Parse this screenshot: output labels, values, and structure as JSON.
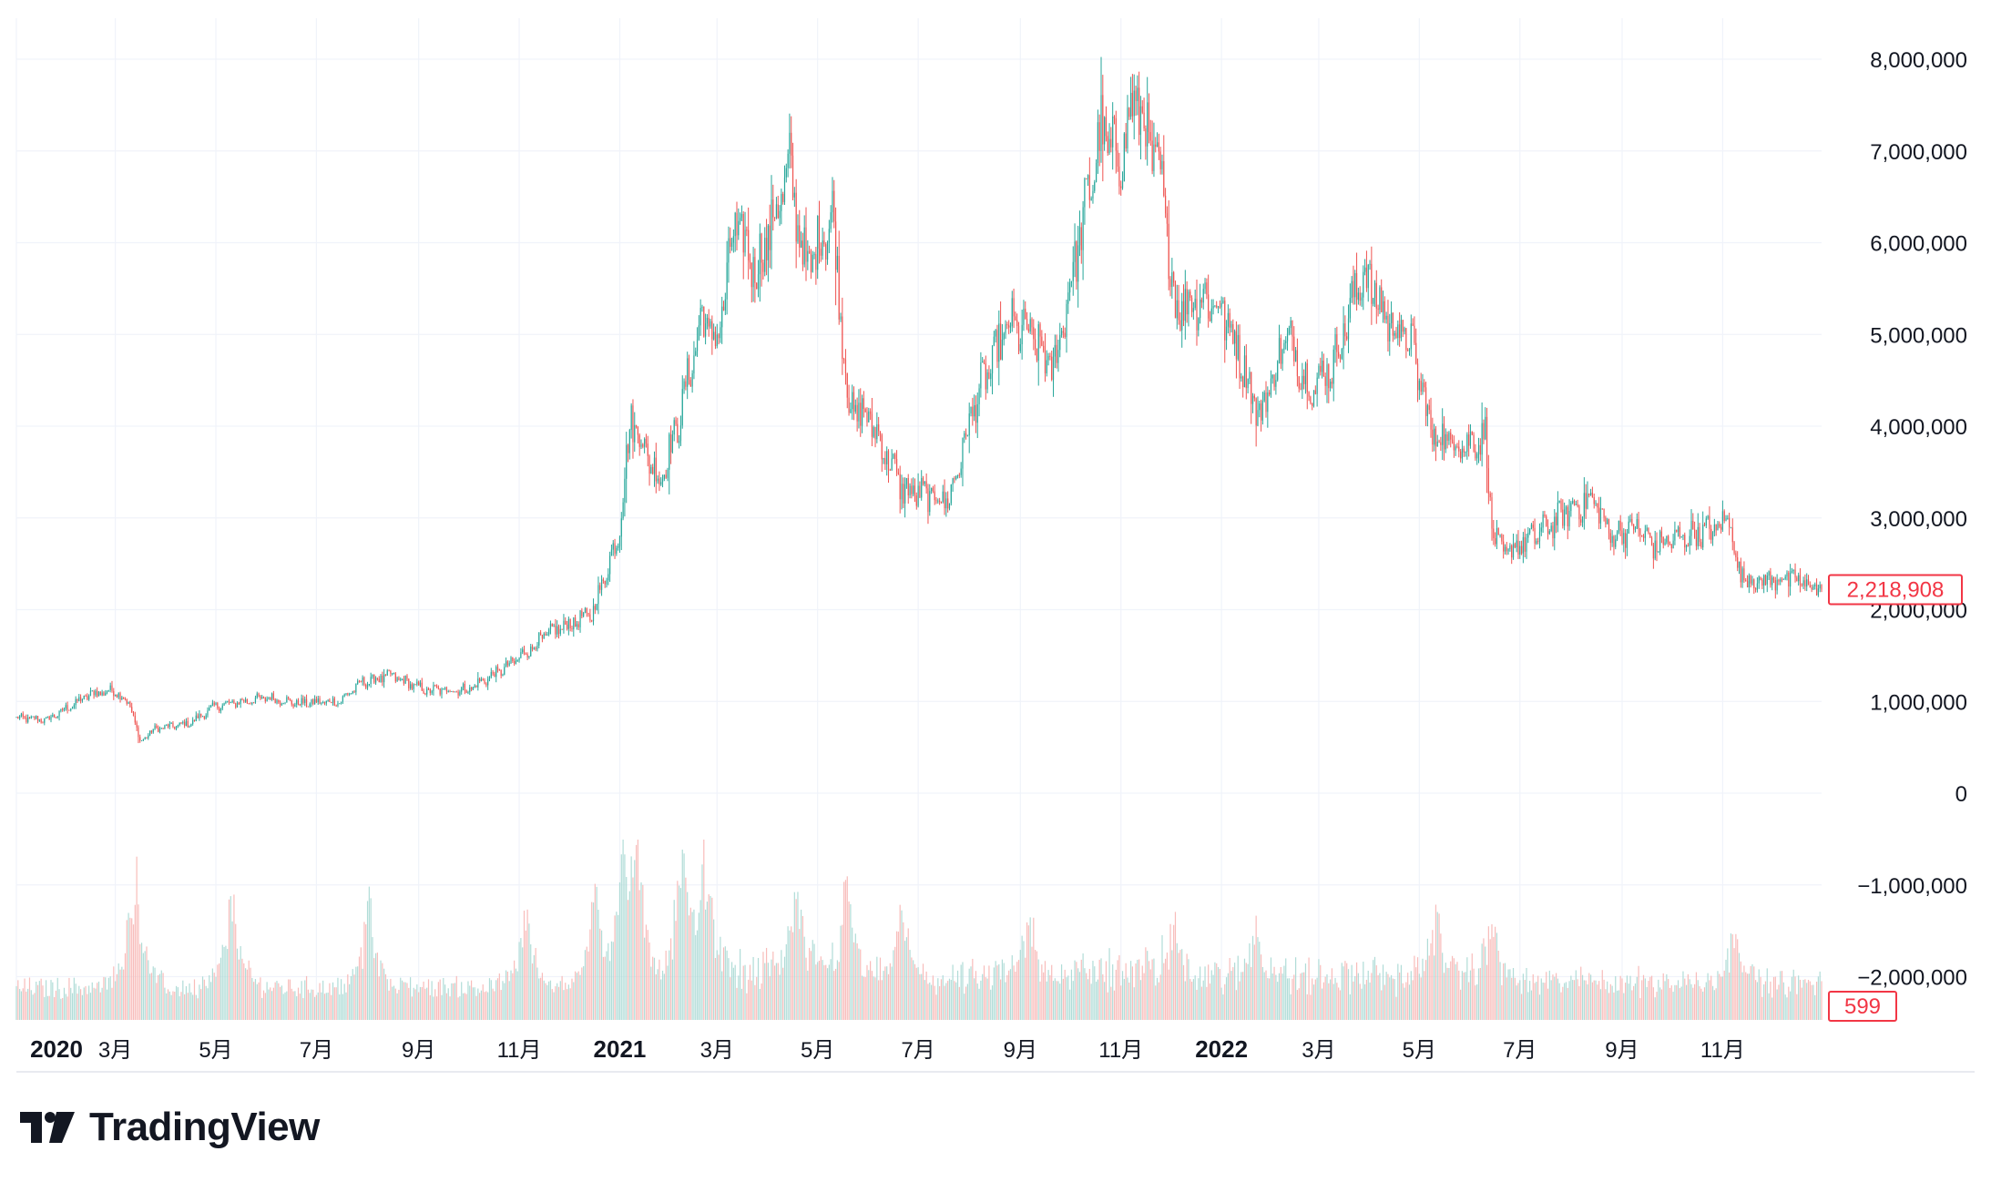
{
  "branding": {
    "logo_text": "TradingView"
  },
  "colors": {
    "up": "#26a69a",
    "down": "#ef5350",
    "grid": "#f0f3fa",
    "text": "#131722",
    "up_volume": "#a7d8d3",
    "down_volume": "#f7b5b3",
    "last_badge": "#f23645"
  },
  "price_axis": {
    "ticks": [
      "8,000,000",
      "7,000,000",
      "6,000,000",
      "5,000,000",
      "4,000,000",
      "3,000,000",
      "2,000,000",
      "1,000,000",
      "0",
      "−1,000,000",
      "−2,000,000"
    ]
  },
  "time_axis": {
    "labels": [
      {
        "text": "2020",
        "bold": true
      },
      {
        "text": "3月",
        "bold": false
      },
      {
        "text": "5月",
        "bold": false
      },
      {
        "text": "7月",
        "bold": false
      },
      {
        "text": "9月",
        "bold": false
      },
      {
        "text": "11月",
        "bold": false
      },
      {
        "text": "2021",
        "bold": true
      },
      {
        "text": "3月",
        "bold": false
      },
      {
        "text": "5月",
        "bold": false
      },
      {
        "text": "7月",
        "bold": false
      },
      {
        "text": "9月",
        "bold": false
      },
      {
        "text": "11月",
        "bold": false
      },
      {
        "text": "2022",
        "bold": true
      },
      {
        "text": "3月",
        "bold": false
      },
      {
        "text": "5月",
        "bold": false
      },
      {
        "text": "7月",
        "bold": false
      },
      {
        "text": "9月",
        "bold": false
      },
      {
        "text": "11月",
        "bold": false
      }
    ]
  },
  "badges": {
    "last_price": "2,218,908",
    "last_volume": "599"
  },
  "chart_data": {
    "type": "candlestick",
    "y_range": [
      -2500000,
      8200000
    ],
    "x_range": [
      "2020-01-01",
      "2022-12-31"
    ],
    "grid": true,
    "last_price": 2218908,
    "last_volume": 599,
    "close_anchors": [
      [
        "2020-01-01",
        820000
      ],
      [
        "2020-01-20",
        800000
      ],
      [
        "2020-02-15",
        1080000
      ],
      [
        "2020-03-01",
        1120000
      ],
      [
        "2020-03-10",
        960000
      ],
      [
        "2020-03-16",
        560000
      ],
      [
        "2020-03-25",
        700000
      ],
      [
        "2020-04-15",
        760000
      ],
      [
        "2020-05-01",
        950000
      ],
      [
        "2020-06-01",
        1040000
      ],
      [
        "2020-06-20",
        980000
      ],
      [
        "2020-07-15",
        1000000
      ],
      [
        "2020-07-28",
        1200000
      ],
      [
        "2020-08-15",
        1280000
      ],
      [
        "2020-09-05",
        1120000
      ],
      [
        "2020-10-01",
        1130000
      ],
      [
        "2020-10-25",
        1380000
      ],
      [
        "2020-11-20",
        1750000
      ],
      [
        "2020-12-15",
        1950000
      ],
      [
        "2020-12-31",
        2800000
      ],
      [
        "2021-01-08",
        4100000
      ],
      [
        "2021-01-25",
        3400000
      ],
      [
        "2021-02-05",
        4000000
      ],
      [
        "2021-02-20",
        5200000
      ],
      [
        "2021-03-01",
        4900000
      ],
      [
        "2021-03-12",
        6200000
      ],
      [
        "2021-03-25",
        5700000
      ],
      [
        "2021-04-14",
        6800000
      ],
      [
        "2021-04-24",
        5700000
      ],
      [
        "2021-05-10",
        6300000
      ],
      [
        "2021-05-20",
        4200000
      ],
      [
        "2021-06-01",
        4100000
      ],
      [
        "2021-06-22",
        3300000
      ],
      [
        "2021-07-20",
        3200000
      ],
      [
        "2021-08-05",
        4300000
      ],
      [
        "2021-08-25",
        5100000
      ],
      [
        "2021-09-07",
        5000000
      ],
      [
        "2021-09-21",
        4600000
      ],
      [
        "2021-10-05",
        5900000
      ],
      [
        "2021-10-20",
        7200000
      ],
      [
        "2021-10-31",
        6900000
      ],
      [
        "2021-11-10",
        7600000
      ],
      [
        "2021-11-26",
        6600000
      ],
      [
        "2021-12-04",
        5300000
      ],
      [
        "2021-12-20",
        5400000
      ],
      [
        "2021-12-31",
        5300000
      ],
      [
        "2022-01-10",
        4900000
      ],
      [
        "2022-01-24",
        4100000
      ],
      [
        "2022-02-10",
        5000000
      ],
      [
        "2022-02-24",
        4400000
      ],
      [
        "2022-03-10",
        4700000
      ],
      [
        "2022-03-28",
        5700000
      ],
      [
        "2022-04-10",
        5200000
      ],
      [
        "2022-04-26",
        4900000
      ],
      [
        "2022-05-09",
        3900000
      ],
      [
        "2022-05-31",
        3800000
      ],
      [
        "2022-06-10",
        3900000
      ],
      [
        "2022-06-14",
        2900000
      ],
      [
        "2022-06-20",
        2600000
      ],
      [
        "2022-07-10",
        2800000
      ],
      [
        "2022-08-01",
        3100000
      ],
      [
        "2022-08-15",
        3200000
      ],
      [
        "2022-08-25",
        2800000
      ],
      [
        "2022-09-10",
        2900000
      ],
      [
        "2022-09-20",
        2700000
      ],
      [
        "2022-10-10",
        2800000
      ],
      [
        "2022-10-31",
        2900000
      ],
      [
        "2022-11-06",
        3050000
      ],
      [
        "2022-11-09",
        2450000
      ],
      [
        "2022-11-20",
        2300000
      ],
      [
        "2022-12-10",
        2350000
      ],
      [
        "2022-12-31",
        2218908
      ]
    ],
    "volume_spikes": [
      [
        "2020-03-13",
        1.0
      ],
      [
        "2020-05-11",
        0.75
      ],
      [
        "2020-08-02",
        0.65
      ],
      [
        "2020-11-05",
        0.55
      ],
      [
        "2020-12-17",
        0.7
      ],
      [
        "2021-01-03",
        0.75
      ],
      [
        "2021-01-11",
        1.0
      ],
      [
        "2021-02-08",
        0.9
      ],
      [
        "2021-02-22",
        0.85
      ],
      [
        "2021-04-18",
        0.6
      ],
      [
        "2021-05-19",
        0.72
      ],
      [
        "2021-06-21",
        0.55
      ],
      [
        "2021-09-07",
        0.45
      ],
      [
        "2021-12-04",
        0.35
      ],
      [
        "2022-01-22",
        0.4
      ],
      [
        "2022-05-12",
        0.5
      ],
      [
        "2022-06-14",
        0.5
      ],
      [
        "2022-11-09",
        0.45
      ]
    ]
  }
}
